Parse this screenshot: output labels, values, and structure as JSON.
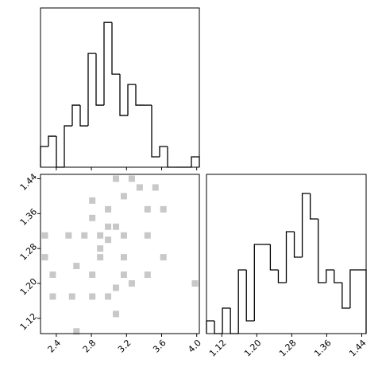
{
  "chart_data": [
    {
      "type": "histogram",
      "color": "#000000",
      "show_xtick_labels": false,
      "bins": [
        2.22,
        2.3105,
        2.401,
        2.4915,
        2.582,
        2.6725,
        2.763,
        2.8535,
        2.944,
        3.0345,
        3.125,
        3.2155,
        3.306,
        3.3965,
        3.487,
        3.5775,
        3.668,
        3.7585,
        3.849,
        3.9395,
        4.03
      ],
      "values": [
        2,
        3,
        0,
        4,
        6,
        4,
        11,
        6,
        14,
        9,
        5,
        8,
        6,
        6,
        1,
        2,
        0,
        0,
        0,
        1
      ],
      "xlim": [
        2.22,
        4.03
      ],
      "ylim": [
        0,
        15.4
      ],
      "xticks": [
        2.4,
        2.8,
        3.2,
        3.6,
        {
          "value": 4,
          "label": "4.0"
        }
      ]
    },
    {
      "type": "scatter",
      "color": "#c8c8c8",
      "x": [
        2.27,
        2.27,
        2.36,
        2.36,
        2.54,
        2.63,
        2.63,
        2.58,
        2.81,
        2.81,
        2.81,
        2.81,
        2.9,
        2.9,
        2.99,
        2.99,
        2.99,
        3.08,
        3.08,
        3.08,
        3.17,
        3.17,
        3.17,
        3.26,
        3.26,
        3.35,
        3.44,
        3.44,
        3.44,
        3.53,
        3.62,
        3.62,
        3.98,
        2.99,
        3.08,
        3.17,
        2.9,
        2.72
      ],
      "y": [
        1.31,
        1.26,
        1.22,
        1.17,
        1.31,
        1.24,
        1.09,
        1.17,
        1.39,
        1.17,
        1.22,
        1.35,
        1.28,
        1.31,
        1.33,
        1.3,
        1.17,
        1.19,
        1.13,
        1.44,
        1.4,
        1.26,
        1.22,
        1.2,
        1.44,
        1.42,
        1.37,
        1.31,
        1.22,
        1.42,
        1.37,
        1.26,
        1.2,
        1.37,
        1.33,
        1.31,
        1.26,
        1.31
      ],
      "xlim": [
        2.22,
        4.03
      ],
      "ylim": [
        1.085,
        1.45
      ],
      "xticks": [
        2.4,
        2.8,
        3.2,
        3.6,
        {
          "value": 4,
          "label": "4.0"
        }
      ],
      "yticks": [
        1.12,
        {
          "value": 1.2,
          "label": "1.20"
        },
        1.28,
        1.36,
        1.44
      ]
    },
    {
      "type": "histogram",
      "color": "#000000",
      "show_xtick_labels": true,
      "bins": [
        1.085,
        1.10325,
        1.1215,
        1.13975,
        1.158,
        1.17625,
        1.1945,
        1.21275,
        1.231,
        1.24925,
        1.2675,
        1.28575,
        1.304,
        1.32225,
        1.3405,
        1.35875,
        1.377,
        1.39525,
        1.4135,
        1.43175,
        1.45
      ],
      "values": [
        1,
        0,
        2,
        0,
        5,
        1,
        7,
        7,
        5,
        4,
        8,
        6,
        11,
        9,
        4,
        5,
        4,
        2,
        5,
        5
      ],
      "xlim": [
        1.085,
        1.45
      ],
      "ylim": [
        0,
        12.5
      ],
      "xticks": [
        1.12,
        {
          "value": 1.2,
          "label": "1.20"
        },
        1.28,
        1.36,
        1.44
      ]
    }
  ]
}
